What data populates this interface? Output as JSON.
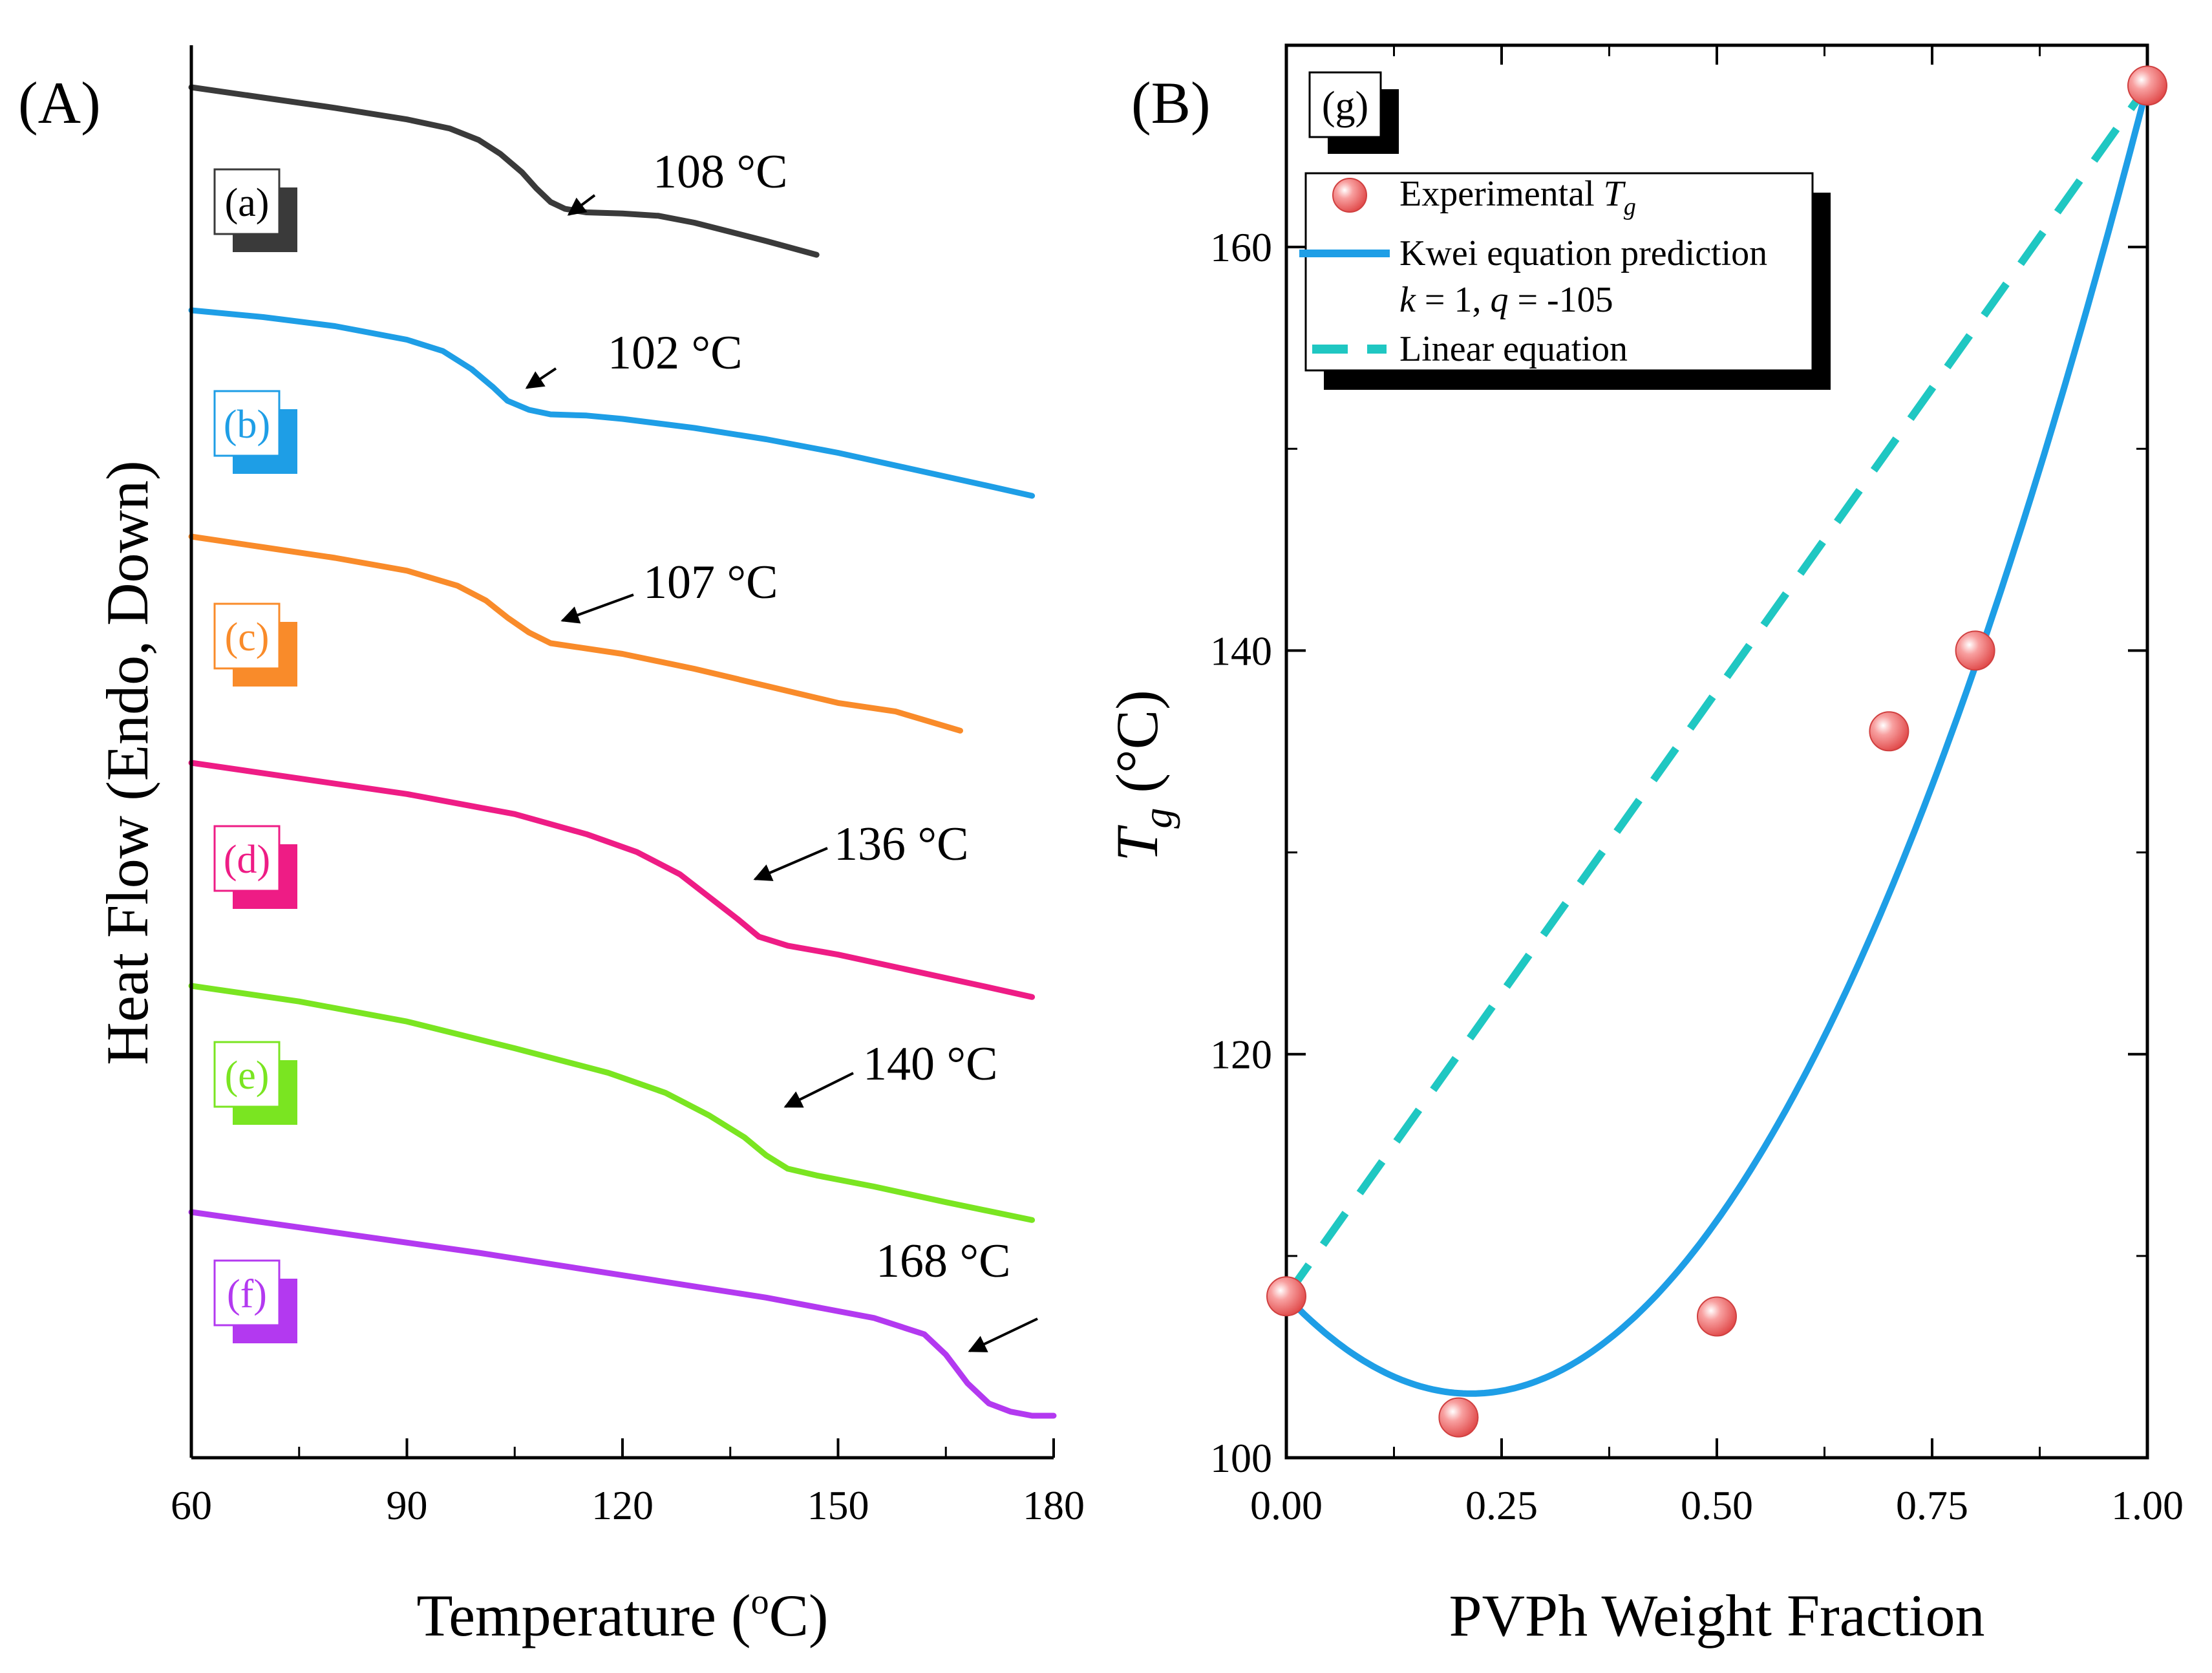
{
  "chart_data": [
    {
      "type": "line",
      "panel": "(A)",
      "xlabel": "Temperature (°C)",
      "xlabel_main": "Temperature (",
      "xlabel_unit": "o",
      "xlabel_end": "C)",
      "ylabel": "Heat Flow (Endo, Down)",
      "xlim": [
        60,
        180
      ],
      "xticks": [
        60,
        90,
        120,
        150,
        180
      ],
      "xticks_labels": [
        "60",
        "90",
        "120",
        "150",
        "180"
      ],
      "yticks": [],
      "series": [
        {
          "name": "(a)",
          "color": "#3a3a3a",
          "tg_label": "108 °C",
          "tg": 108,
          "x": [
            60,
            70,
            80,
            90,
            96,
            100,
            103,
            106,
            108,
            110,
            112,
            115,
            120,
            125,
            130,
            135,
            140,
            147
          ],
          "y": [
            1.0,
            0.955,
            0.91,
            0.86,
            0.82,
            0.77,
            0.71,
            0.63,
            0.56,
            0.5,
            0.47,
            0.455,
            0.45,
            0.44,
            0.41,
            0.37,
            0.33,
            0.27
          ]
        },
        {
          "name": "(b)",
          "color": "#1e9ee6",
          "tg_label": "102 °C",
          "tg": 102,
          "x": [
            60,
            70,
            80,
            90,
            95,
            99,
            102,
            104,
            107,
            110,
            115,
            120,
            130,
            140,
            150,
            160,
            170,
            177
          ],
          "y": [
            1.0,
            0.97,
            0.93,
            0.87,
            0.82,
            0.74,
            0.66,
            0.6,
            0.56,
            0.54,
            0.535,
            0.52,
            0.48,
            0.43,
            0.37,
            0.3,
            0.23,
            0.18
          ]
        },
        {
          "name": "(c)",
          "color": "#f98b2a",
          "tg_label": "107 °C",
          "tg": 107,
          "x": [
            60,
            70,
            80,
            90,
            97,
            101,
            104,
            107,
            110,
            114,
            120,
            130,
            140,
            150,
            158,
            162,
            167
          ],
          "y": [
            1.0,
            0.95,
            0.9,
            0.84,
            0.77,
            0.7,
            0.62,
            0.55,
            0.5,
            0.48,
            0.45,
            0.38,
            0.3,
            0.22,
            0.18,
            0.14,
            0.09
          ]
        },
        {
          "name": "(d)",
          "color": "#ee1c85",
          "tg_label": "136 °C",
          "tg": 136,
          "x": [
            60,
            75,
            90,
            105,
            115,
            122,
            128,
            132,
            136,
            139,
            143,
            150,
            160,
            170,
            177
          ],
          "y": [
            1.0,
            0.93,
            0.86,
            0.77,
            0.68,
            0.6,
            0.5,
            0.4,
            0.3,
            0.22,
            0.18,
            0.14,
            0.07,
            0.0,
            -0.05
          ]
        },
        {
          "name": "(e)",
          "color": "#7ae521",
          "tg_label": "140 °C",
          "tg": 140,
          "x": [
            60,
            75,
            90,
            105,
            118,
            126,
            132,
            137,
            140,
            143,
            147,
            155,
            165,
            177
          ],
          "y": [
            1.0,
            0.93,
            0.84,
            0.72,
            0.61,
            0.52,
            0.42,
            0.32,
            0.24,
            0.18,
            0.15,
            0.1,
            0.03,
            -0.05
          ]
        },
        {
          "name": "(f)",
          "color": "#b339f0",
          "tg_label": "168 °C",
          "tg": 168,
          "x": [
            60,
            80,
            100,
            120,
            140,
            155,
            162,
            165,
            168,
            171,
            174,
            177,
            180
          ],
          "y": [
            1.0,
            0.9,
            0.8,
            0.69,
            0.58,
            0.48,
            0.4,
            0.3,
            0.16,
            0.06,
            0.02,
            0.0,
            0.0
          ]
        }
      ]
    },
    {
      "type": "scatter",
      "panel": "(B)",
      "tag": "(g)",
      "xlabel": "PVPh Weight Fraction",
      "ylabel": "Tg (°C)",
      "ylabel_main": "T",
      "ylabel_sub": "g",
      "ylabel_unit": " (°C)",
      "xlim": [
        0,
        1
      ],
      "ylim": [
        100,
        170
      ],
      "xticks": [
        0,
        0.25,
        0.5,
        0.75,
        1.0
      ],
      "xticks_labels": [
        "0.00",
        "0.25",
        "0.50",
        "0.75",
        "1.00"
      ],
      "yticks": [
        100,
        120,
        140,
        160
      ],
      "yticks_labels": [
        "100",
        "120",
        "140",
        "160"
      ],
      "legend_position": "top-left",
      "legend": {
        "experimental_main": "Experimental ",
        "experimental_T": "T",
        "experimental_sub": "g",
        "kwei": "Kwei equation prediction",
        "kwei_params_k": "k",
        "kwei_params_mid": " = 1, ",
        "kwei_params_q": "q",
        "kwei_params_end": " = -105",
        "linear": "Linear equation"
      },
      "series": [
        {
          "name": "Experimental Tg",
          "color": "#f06060",
          "x": [
            0.0,
            0.2,
            0.5,
            0.7,
            0.8,
            1.0
          ],
          "y": [
            108,
            102,
            107,
            136,
            140,
            168
          ]
        },
        {
          "name": "Kwei equation prediction",
          "color": "#1e9ee6",
          "k": 1,
          "q": -105,
          "Tg1": 108,
          "Tg2": 168
        },
        {
          "name": "Linear equation",
          "color": "#1fc7c2",
          "x": [
            0.0,
            1.0
          ],
          "y": [
            108,
            168
          ]
        }
      ]
    }
  ]
}
